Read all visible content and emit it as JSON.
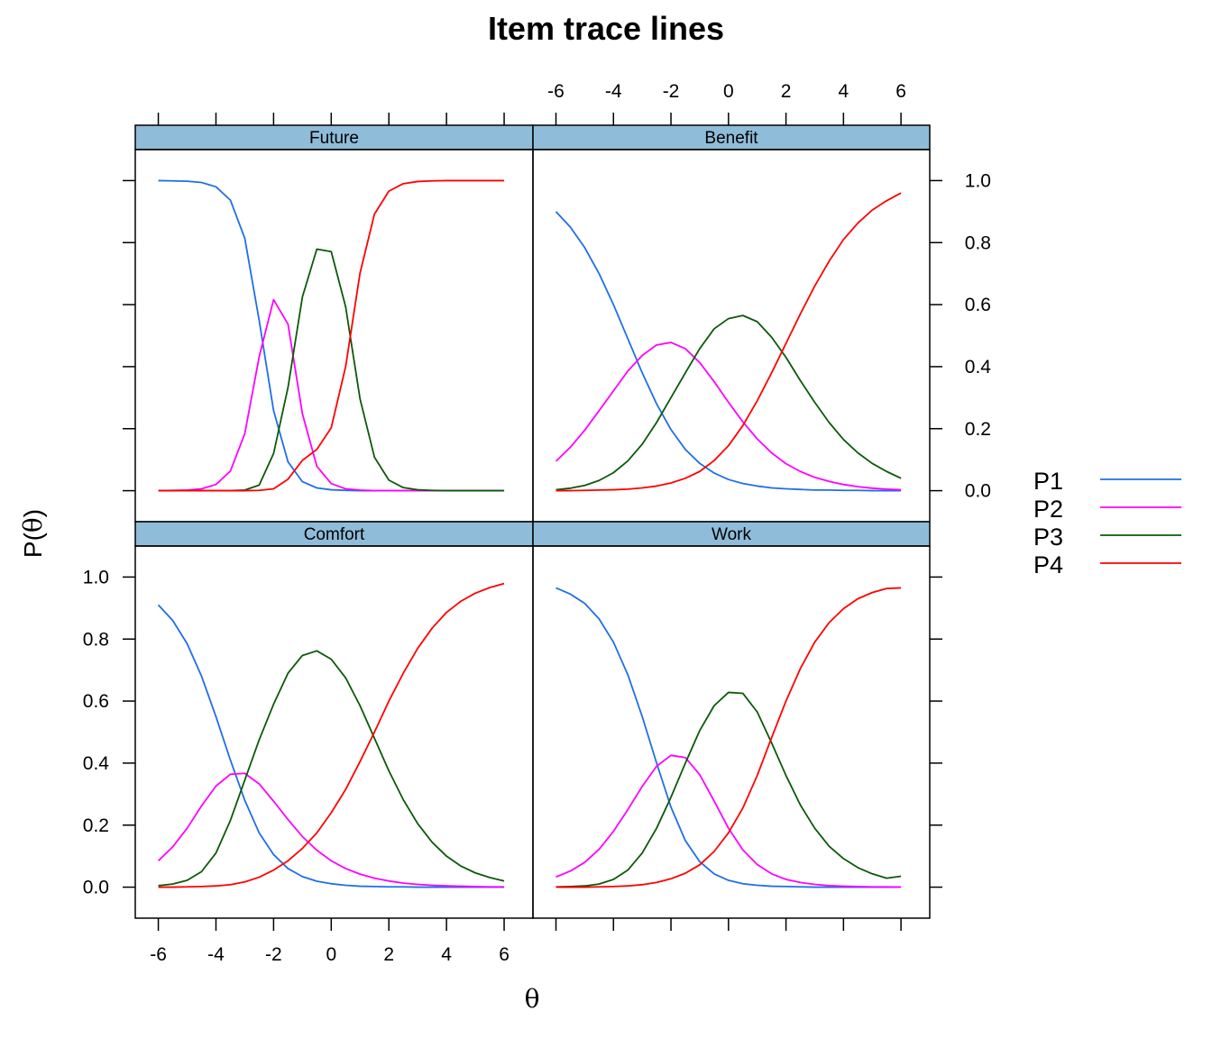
{
  "chart_data": {
    "type": "line",
    "title": "Item trace lines",
    "xlabel": "θ",
    "ylabel": "P(θ)",
    "xlim": [
      -6.8,
      7.0
    ],
    "ylim": [
      -0.1,
      1.1
    ],
    "x_ticks": [
      "-6",
      "-4",
      "-2",
      "0",
      "2",
      "4",
      "6"
    ],
    "y_ticks": [
      "0.0",
      "0.2",
      "0.4",
      "0.6",
      "0.8",
      "1.0"
    ],
    "x_tick_values": [
      -6,
      -4,
      -2,
      0,
      2,
      4,
      6
    ],
    "y_tick_values": [
      0,
      0.2,
      0.4,
      0.6,
      0.8,
      1.0
    ],
    "legend": [
      "P1",
      "P2",
      "P3",
      "P4"
    ],
    "legend_position": "right",
    "colors": {
      "P1": "#1f6fe8",
      "P2": "#ff00ff",
      "P3": "#0b5a08",
      "P4": "#ff0000",
      "strip": "#8fbcd8"
    },
    "x": [
      -6,
      -5.5,
      -5,
      -4.5,
      -4,
      -3.5,
      -3,
      -2.5,
      -2,
      -1.5,
      -1,
      -0.5,
      0,
      0.5,
      1,
      1.5,
      2,
      2.5,
      3,
      3.5,
      4,
      4.5,
      5,
      5.5,
      6
    ],
    "panels": [
      {
        "name": "Future",
        "series": [
          {
            "name": "P1",
            "values": [
              1.0,
              0.999,
              0.998,
              0.994,
              0.98,
              0.937,
              0.814,
              0.549,
              0.258,
              0.093,
              0.029,
              0.009,
              0.003,
              0.001,
              0,
              0,
              0,
              0,
              0,
              0,
              0,
              0,
              0,
              0,
              0
            ]
          },
          {
            "name": "P2",
            "values": [
              0,
              0.001,
              0.002,
              0.006,
              0.02,
              0.063,
              0.184,
              0.432,
              0.616,
              0.537,
              0.248,
              0.079,
              0.023,
              0.006,
              0.002,
              0,
              0,
              0,
              0,
              0,
              0,
              0,
              0,
              0,
              0
            ]
          },
          {
            "name": "P3",
            "values": [
              0,
              0,
              0,
              0,
              0,
              0,
              0.002,
              0.018,
              0.12,
              0.333,
              0.625,
              0.779,
              0.771,
              0.593,
              0.296,
              0.108,
              0.034,
              0.01,
              0.003,
              0.001,
              0,
              0,
              0,
              0,
              0
            ]
          },
          {
            "name": "P4",
            "values": [
              0,
              0,
              0,
              0,
              0,
              0,
              0,
              0.001,
              0.006,
              0.037,
              0.098,
              0.133,
              0.203,
              0.4,
              0.702,
              0.892,
              0.966,
              0.99,
              0.997,
              0.999,
              1.0,
              1.0,
              1.0,
              1.0,
              1.0
            ]
          }
        ]
      },
      {
        "name": "Benefit",
        "series": [
          {
            "name": "P1",
            "values": [
              0.9,
              0.85,
              0.784,
              0.7,
              0.6,
              0.49,
              0.38,
              0.28,
              0.197,
              0.133,
              0.088,
              0.057,
              0.036,
              0.023,
              0.015,
              0.009,
              0.006,
              0.004,
              0.002,
              0.002,
              0.001,
              0.001,
              0,
              0,
              0
            ]
          },
          {
            "name": "P2",
            "values": [
              0.095,
              0.14,
              0.195,
              0.258,
              0.322,
              0.386,
              0.436,
              0.47,
              0.478,
              0.458,
              0.413,
              0.352,
              0.285,
              0.222,
              0.167,
              0.122,
              0.087,
              0.062,
              0.043,
              0.03,
              0.02,
              0.013,
              0.008,
              0.005,
              0.003
            ]
          },
          {
            "name": "P3",
            "values": [
              0.003,
              0.008,
              0.017,
              0.033,
              0.058,
              0.096,
              0.15,
              0.22,
              0.3,
              0.38,
              0.458,
              0.522,
              0.555,
              0.565,
              0.545,
              0.495,
              0.43,
              0.355,
              0.285,
              0.22,
              0.165,
              0.122,
              0.088,
              0.062,
              0.04
            ]
          },
          {
            "name": "P4",
            "values": [
              0,
              0,
              0.001,
              0.002,
              0.003,
              0.005,
              0.009,
              0.015,
              0.025,
              0.04,
              0.062,
              0.097,
              0.145,
              0.21,
              0.29,
              0.38,
              0.475,
              0.57,
              0.66,
              0.74,
              0.81,
              0.863,
              0.905,
              0.935,
              0.96
            ]
          }
        ]
      },
      {
        "name": "Comfort",
        "series": [
          {
            "name": "P1",
            "values": [
              0.91,
              0.86,
              0.785,
              0.68,
              0.55,
              0.41,
              0.28,
              0.175,
              0.105,
              0.06,
              0.034,
              0.019,
              0.011,
              0.006,
              0.003,
              0.002,
              0.001,
              0.001,
              0,
              0,
              0,
              0,
              0,
              0,
              0
            ]
          },
          {
            "name": "P2",
            "values": [
              0.085,
              0.13,
              0.19,
              0.262,
              0.326,
              0.364,
              0.367,
              0.333,
              0.277,
              0.218,
              0.163,
              0.119,
              0.085,
              0.06,
              0.042,
              0.029,
              0.02,
              0.013,
              0.009,
              0.006,
              0.004,
              0.003,
              0.002,
              0.001,
              0.001
            ]
          },
          {
            "name": "P3",
            "values": [
              0.005,
              0.01,
              0.022,
              0.05,
              0.11,
              0.215,
              0.345,
              0.475,
              0.59,
              0.69,
              0.747,
              0.762,
              0.735,
              0.675,
              0.585,
              0.48,
              0.375,
              0.282,
              0.205,
              0.145,
              0.1,
              0.068,
              0.046,
              0.031,
              0.02
            ]
          },
          {
            "name": "P4",
            "values": [
              0,
              0,
              0.001,
              0.002,
              0.004,
              0.008,
              0.017,
              0.032,
              0.055,
              0.085,
              0.125,
              0.175,
              0.24,
              0.315,
              0.405,
              0.5,
              0.6,
              0.69,
              0.77,
              0.835,
              0.886,
              0.922,
              0.948,
              0.966,
              0.979
            ]
          }
        ]
      },
      {
        "name": "Work",
        "series": [
          {
            "name": "P1",
            "values": [
              0.965,
              0.945,
              0.915,
              0.865,
              0.79,
              0.685,
              0.55,
              0.4,
              0.258,
              0.15,
              0.082,
              0.043,
              0.022,
              0.011,
              0.006,
              0.003,
              0.002,
              0.001,
              0,
              0,
              0,
              0,
              0,
              0,
              0
            ]
          },
          {
            "name": "P2",
            "values": [
              0.033,
              0.052,
              0.08,
              0.122,
              0.18,
              0.25,
              0.325,
              0.39,
              0.425,
              0.418,
              0.363,
              0.278,
              0.19,
              0.12,
              0.073,
              0.043,
              0.025,
              0.015,
              0.009,
              0.005,
              0.003,
              0.002,
              0.001,
              0.001,
              0
            ]
          },
          {
            "name": "P3",
            "values": [
              0.001,
              0.002,
              0.004,
              0.01,
              0.025,
              0.055,
              0.11,
              0.19,
              0.29,
              0.4,
              0.505,
              0.585,
              0.628,
              0.625,
              0.565,
              0.465,
              0.36,
              0.265,
              0.19,
              0.132,
              0.092,
              0.063,
              0.043,
              0.029,
              0.035
            ]
          },
          {
            "name": "P4",
            "values": [
              0,
              0,
              0,
              0.001,
              0.002,
              0.004,
              0.008,
              0.015,
              0.027,
              0.045,
              0.072,
              0.115,
              0.175,
              0.255,
              0.36,
              0.482,
              0.6,
              0.705,
              0.79,
              0.853,
              0.898,
              0.93,
              0.95,
              0.963,
              0.965
            ]
          }
        ]
      }
    ]
  }
}
